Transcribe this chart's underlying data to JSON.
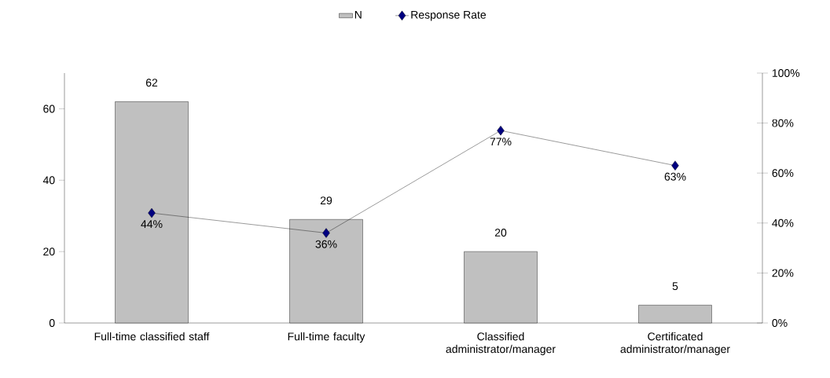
{
  "chart_data": {
    "type": "bar",
    "categories": [
      "Full-time classified staff",
      "Full-time faculty",
      "Classified administrator/manager",
      "Certificated administrator/manager"
    ],
    "series": [
      {
        "name": "N",
        "color": "#c0c0c0",
        "values": [
          62,
          29,
          20,
          5
        ],
        "value_labels": [
          "62",
          "29",
          "20",
          "5"
        ]
      },
      {
        "name": "Response Rate",
        "type": "line",
        "axis": "y2",
        "color": "#000080",
        "marker": "diamond",
        "values": [
          44,
          36,
          77,
          63
        ],
        "value_labels": [
          "44%",
          "36%",
          "77%",
          "63%"
        ]
      }
    ],
    "ylim": [
      0,
      70
    ],
    "yticks": [
      0,
      20,
      40,
      60
    ],
    "y2lim": [
      0,
      100
    ],
    "y2ticks": [
      {
        "value": 0,
        "label": "0%"
      },
      {
        "value": 20,
        "label": "20%"
      },
      {
        "value": 40,
        "label": "40%"
      },
      {
        "value": 60,
        "label": "60%"
      },
      {
        "value": 80,
        "label": "80%"
      },
      {
        "value": 100,
        "label": "100%"
      }
    ],
    "legend": "top",
    "grid": false
  }
}
